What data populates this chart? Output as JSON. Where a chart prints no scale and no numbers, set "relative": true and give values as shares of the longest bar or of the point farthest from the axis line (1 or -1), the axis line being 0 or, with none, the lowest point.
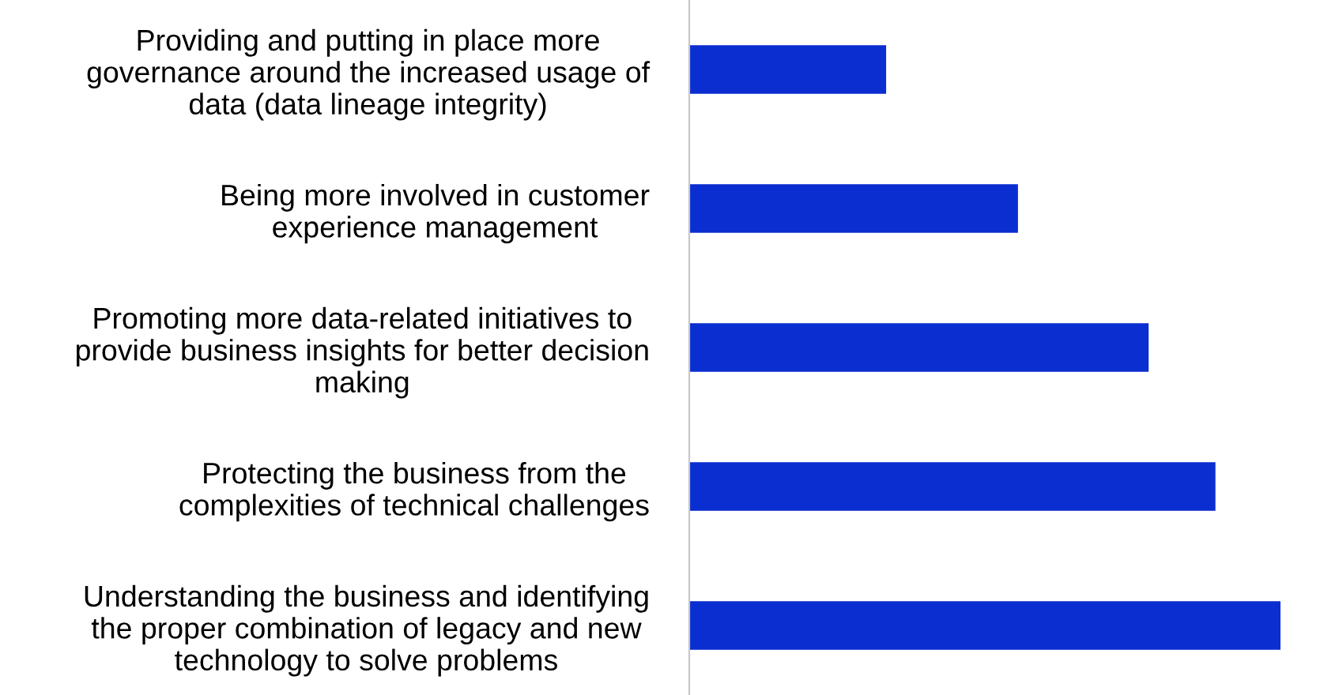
{
  "chart_data": {
    "type": "bar",
    "orientation": "horizontal",
    "relative": true,
    "color": "#0a2ed0",
    "grid": false,
    "categories": [
      "Providing and putting in place more\ngovernance around the increased usage of\ndata (data lineage integrity)",
      "Being more involved in customer\nexperience management",
      "Promoting more data-related initiatives to\nprovide business insights for better decision\nmaking",
      "Protecting the business from the\ncomplexities of technical challenges",
      "Understanding the business and identifying\nthe proper combination of legacy and new\ntechnology to solve problems"
    ],
    "values": [
      0.333,
      0.556,
      0.777,
      0.89,
      1
    ]
  }
}
